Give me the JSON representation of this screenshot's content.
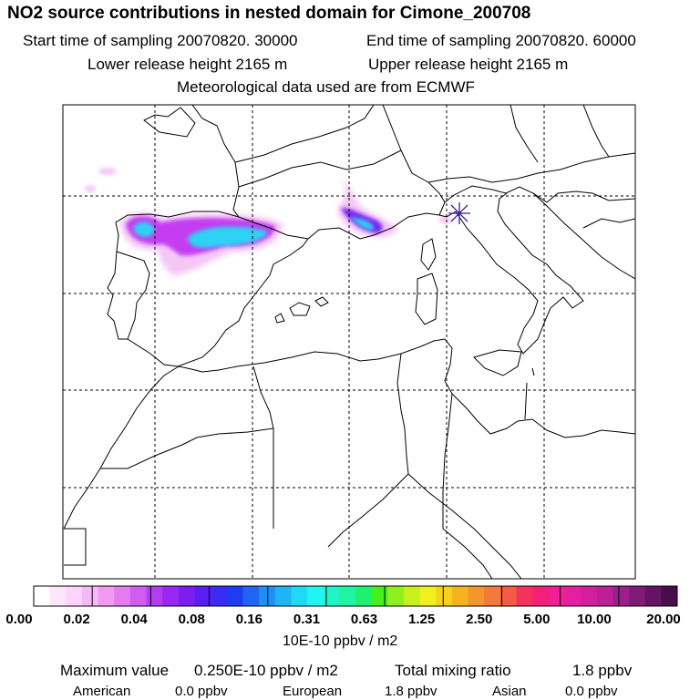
{
  "header": {
    "title": "NO2 source contributions in nested domain for Cimone_200708",
    "start_label": "Start time of sampling 20070820. 30000",
    "end_label": "End time of sampling 20070820. 60000",
    "lower_label": "Lower release height 2165 m",
    "upper_label": "Upper release height 2165 m",
    "met_label": "Meteorological data used are from ECMWF"
  },
  "colorbar": {
    "colors": [
      "#ffffff",
      "#fde6fd",
      "#fbd3fb",
      "#f7b8f7",
      "#f29af2",
      "#e47bef",
      "#d15cf0",
      "#b43cf2",
      "#9a27f2",
      "#7d1ef0",
      "#5a1ef0",
      "#3c2bf2",
      "#1f3cf0",
      "#1f64f2",
      "#1f8ef5",
      "#1fb4f5",
      "#1fd9f5",
      "#1ff5f2",
      "#1ff5c8",
      "#1ff5a0",
      "#1ff070",
      "#46f01f",
      "#8ef01f",
      "#c8f01f",
      "#f0f01f",
      "#f5d21f",
      "#f5b41f",
      "#f5962d",
      "#f5783c",
      "#f55a46",
      "#f5325a",
      "#f51f78",
      "#f01f96",
      "#e61fa0",
      "#d21fa0",
      "#bc1f96",
      "#a01e8c",
      "#821a78",
      "#641464",
      "#460f4b"
    ],
    "labels": [
      "0.00",
      "0.02",
      "0.04",
      "0.08",
      "0.16",
      "0.31",
      "0.63",
      "1.25",
      "2.50",
      "5.00",
      "10.00",
      "20.00"
    ],
    "unit": "10E-10 ppbv / m2"
  },
  "footer": {
    "max_label": "Maximum value",
    "max_value": "0.250E-10 ppbv / m2",
    "total_label": "Total mixing ratio",
    "total_value": "1.8 ppbv",
    "american_label": "American",
    "american_value": "0.0 ppbv",
    "european_label": "European",
    "european_value": "1.8 ppbv",
    "asian_label": "Asian",
    "asian_value": "0.0 ppbv"
  },
  "map": {
    "station_marker": "asterisk-icon",
    "plume_colors": [
      "#f4c8f6",
      "#c43cf2",
      "#7d22ee",
      "#2fd2f2"
    ]
  }
}
